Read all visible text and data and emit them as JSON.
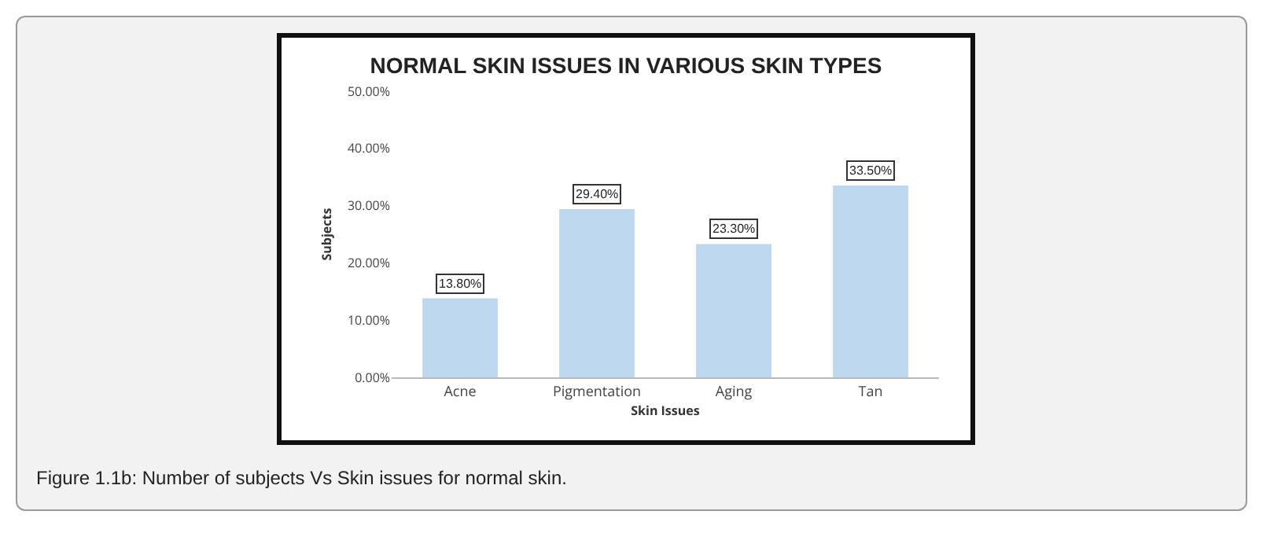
{
  "chart_data": {
    "type": "bar",
    "title": "NORMAL SKIN ISSUES IN VARIOUS SKIN TYPES",
    "xlabel": "Skin Issues",
    "ylabel": "Subjects",
    "categories": [
      "Acne",
      "Pigmentation",
      "Aging",
      "Tan"
    ],
    "values": [
      13.8,
      29.4,
      23.3,
      33.5
    ],
    "value_labels": [
      "13.80%",
      "29.40%",
      "23.30%",
      "33.50%"
    ],
    "color": "#bdd7ee",
    "ylim": [
      0,
      50
    ],
    "yticks": [
      {
        "value": 0,
        "label": "0.00%"
      },
      {
        "value": 10,
        "label": "10.00%"
      },
      {
        "value": 20,
        "label": "20.00%"
      },
      {
        "value": 30,
        "label": "30.00%"
      },
      {
        "value": 40,
        "label": "40.00%"
      },
      {
        "value": 50,
        "label": "50.00%"
      }
    ],
    "grid": false,
    "annotations": [
      "Figure 1.1b: Number of subjects Vs Skin issues for normal skin."
    ]
  }
}
